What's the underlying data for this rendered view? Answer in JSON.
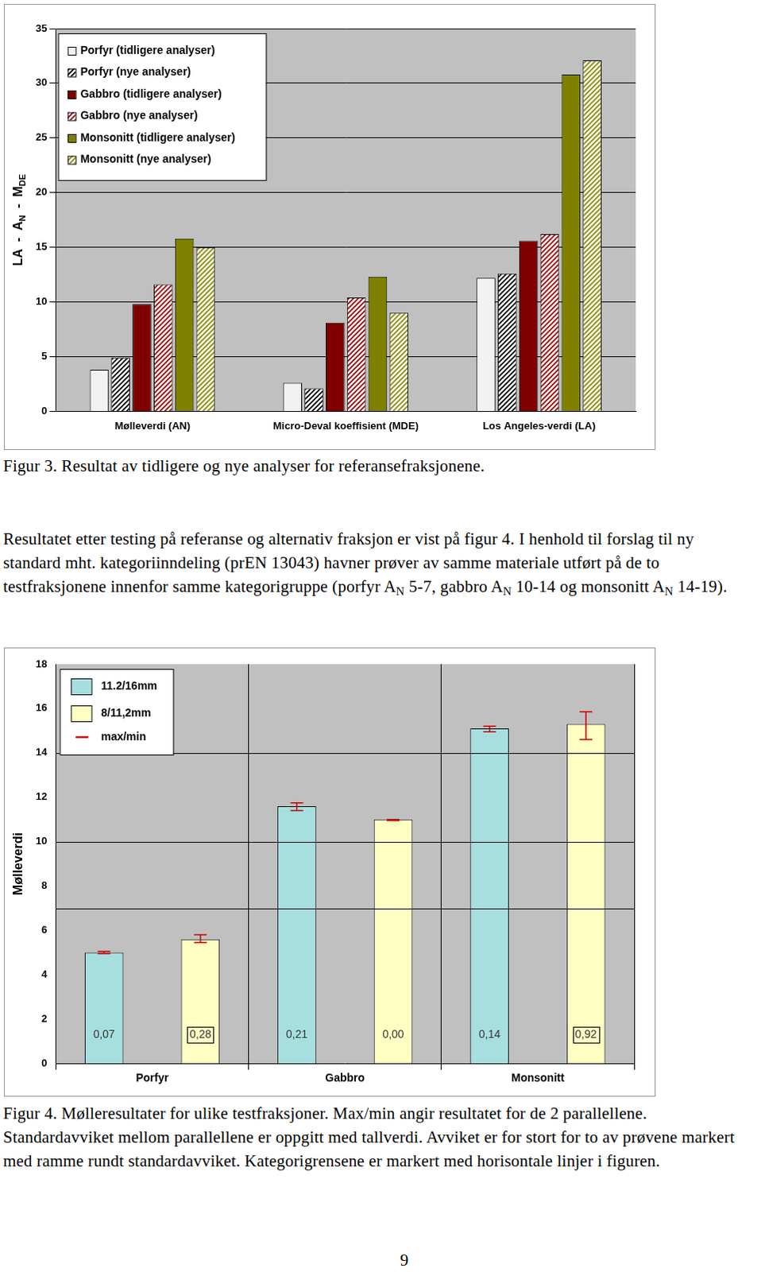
{
  "chart_data": [
    {
      "type": "bar",
      "y_label": [
        "LA  -  A",
        {
          "sub": "N"
        },
        "  -  M",
        {
          "sub": "DE"
        }
      ],
      "categories": [
        "Mølleverdi (AN)",
        "Micro-Deval koeffisient (MDE)",
        "Los Angeles-verdi (LA)"
      ],
      "series": [
        {
          "name": "Porfyr (tidligere analyser)",
          "color": "#f2f2f2",
          "values": [
            3.8,
            2.6,
            12.2
          ]
        },
        {
          "name": "Porfyr (nye analyser)",
          "color": "#000000",
          "values": [
            4.9,
            2.1,
            12.6
          ]
        },
        {
          "name": "Gabbro (tidligere analyser)",
          "color": "#800000",
          "values": [
            9.8,
            8.1,
            15.6
          ]
        },
        {
          "name": "Gabbro (nye analyser)",
          "color": "#a00000",
          "values": [
            11.6,
            10.4,
            16.2
          ]
        },
        {
          "name": "Monsonitt (tidligere analyser)",
          "color": "#808000",
          "values": [
            15.8,
            12.3,
            30.8
          ]
        },
        {
          "name": "Monsonitt (nye analyser)",
          "color": "#8a8a00",
          "values": [
            15.0,
            9.0,
            32.1
          ]
        }
      ],
      "ylim": [
        0,
        35
      ],
      "yticks": [
        0,
        5,
        10,
        15,
        20,
        25,
        30,
        35
      ],
      "grid": "y",
      "legend": "upper left",
      "caption": "Figur 3. Resultat av tidligere og nye analyser for referansefraksjonene."
    },
    {
      "type": "bar",
      "y_label": "Mølleverdi",
      "categories": [
        "Porfyr",
        "Gabbro",
        "Monsonitt"
      ],
      "series": [
        {
          "name": "11.2/16mm",
          "color": "#a7dfe0",
          "values": [
            5.0,
            11.6,
            15.1
          ],
          "min": [
            4.95,
            11.4,
            14.95
          ],
          "max": [
            5.05,
            11.75,
            15.2
          ],
          "std_labels": [
            "0,07",
            "0,21",
            "0,14"
          ],
          "deviation_too_large": [
            false,
            false,
            false
          ]
        },
        {
          "name": "8/11,2mm",
          "color": "#ffffc4",
          "values": [
            5.6,
            11.0,
            15.3
          ],
          "min": [
            5.45,
            10.95,
            14.6
          ],
          "max": [
            5.8,
            11.0,
            15.85
          ],
          "std_labels": [
            "0,28",
            "0,00",
            "0,92"
          ],
          "deviation_too_large": [
            true,
            false,
            true
          ]
        }
      ],
      "error_bar_label": "max/min",
      "category_limits": [
        7,
        10,
        14
      ],
      "ylim": [
        0,
        18
      ],
      "yticks": [
        0,
        2,
        4,
        6,
        8,
        10,
        12,
        14,
        16,
        18
      ],
      "grid": "x",
      "legend": "upper left",
      "caption": "Figur 4. Mølleresultater for ulike testfraksjoner. Max/min angir resultatet for de 2 parallellene. Standardavviket mellom parallellene er oppgitt med tallverdi. Avviket er for stort for to av prøvene markert med ramme rundt standardavviket. Kategorigrensene er markert med horisontale linjer i figuren."
    }
  ],
  "paragraph": [
    "Resultatet etter testing på referanse og alternativ fraksjon er vist på figur 4. I henhold til forslag til ny standard mht. kategoriinndeling (prEN 13043) havner prøver av samme materiale utført på de to testfraksjonene innenfor samme kategorigruppe (porfyr A",
    {
      "sub": "N"
    },
    " 5-7, gabbro A",
    {
      "sub": "N"
    },
    " 10-14 og monsonitt A",
    {
      "sub": "N"
    },
    " 14-19)."
  ],
  "page_number": 9
}
